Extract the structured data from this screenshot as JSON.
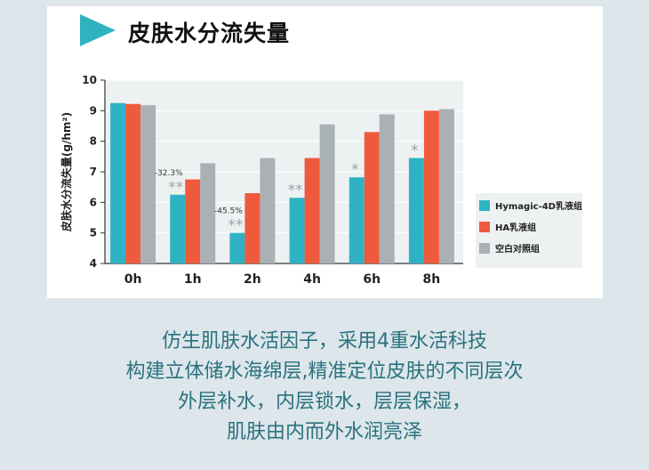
{
  "title": "皮肤水分流失量",
  "chart_data": {
    "type": "bar",
    "title": "皮肤水分流失量",
    "xlabel": "",
    "ylabel": "皮肤水分流失量(g/hm²)",
    "ylim": [
      4,
      10
    ],
    "yticks": [
      4,
      5,
      6,
      7,
      8,
      9,
      10
    ],
    "categories": [
      "0h",
      "1h",
      "2h",
      "4h",
      "6h",
      "8h"
    ],
    "series": [
      {
        "name": "Hymagic-4D乳液组",
        "color": "#2fb3c4",
        "values": [
          9.25,
          6.25,
          5.0,
          6.15,
          6.82,
          7.45
        ]
      },
      {
        "name": "HA乳液组",
        "color": "#ef5a3c",
        "values": [
          9.22,
          6.75,
          6.3,
          7.45,
          8.3,
          9.0
        ]
      },
      {
        "name": "空白对照组",
        "color": "#a9b1b4",
        "values": [
          9.18,
          7.28,
          7.45,
          8.55,
          8.88,
          9.05
        ]
      }
    ],
    "annotations": [
      {
        "category": "1h",
        "series": 0,
        "label": "-32.3%",
        "mark": "**"
      },
      {
        "category": "2h",
        "series": 0,
        "label": "-45.5%",
        "mark": "**"
      },
      {
        "category": "4h",
        "series": 0,
        "label": "",
        "mark": "**"
      },
      {
        "category": "6h",
        "series": 0,
        "label": "",
        "mark": "*"
      },
      {
        "category": "8h",
        "series": 0,
        "label": "",
        "mark": "*"
      }
    ],
    "legend_position": "right"
  },
  "caption": [
    "仿生肌肤水活因子，采用4重水活科技",
    "构建立体储水海绵层,精准定位皮肤的不同层次",
    "外层补水，内层锁水，层层保湿，",
    "肌肤由内而外水润亮泽"
  ]
}
